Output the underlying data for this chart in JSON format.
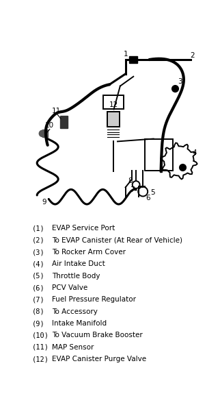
{
  "legend_items": [
    {
      "num": "1",
      "text": "EVAP Service Port"
    },
    {
      "num": "2",
      "text": "To EVAP Canister (At Rear of Vehicle)"
    },
    {
      "num": "3",
      "text": "To Rocker Arm Cover"
    },
    {
      "num": "4",
      "text": "Air Intake Duct"
    },
    {
      "num": "5",
      "text": "Throttle Body"
    },
    {
      "num": "6",
      "text": "PCV Valve"
    },
    {
      "num": "7",
      "text": "Fuel Pressure Regulator"
    },
    {
      "num": "8",
      "text": "To Accessory"
    },
    {
      "num": "9",
      "text": "Intake Manifold"
    },
    {
      "num": "10",
      "text": "To Vacuum Brake Booster"
    },
    {
      "num": "11",
      "text": "MAP Sensor"
    },
    {
      "num": "12",
      "text": "EVAP Canister Purge Valve"
    }
  ],
  "bg_color": "#ffffff",
  "line_color": "#000000",
  "label_color": "#000000",
  "legend_font_size": 7.5
}
